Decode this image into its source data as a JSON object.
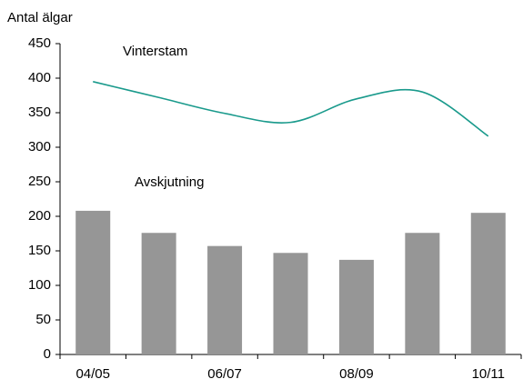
{
  "chart_data": {
    "type": "bar_line",
    "y_label": "Antal älgar",
    "categories": [
      "04/05",
      null,
      "06/07",
      null,
      "08/09",
      null,
      "10/11"
    ],
    "series": [
      {
        "name": "Avskjutning",
        "type": "bar",
        "color": "#969696",
        "values": [
          208,
          176,
          157,
          147,
          137,
          176,
          205
        ]
      },
      {
        "name": "Vinterstam",
        "type": "line",
        "color": "#1a9a8c",
        "values": [
          395,
          372,
          349,
          336,
          370,
          380,
          316
        ]
      }
    ],
    "ylim": [
      0,
      450
    ],
    "yticks": [
      0,
      50,
      100,
      150,
      200,
      250,
      300,
      350,
      400,
      450
    ]
  }
}
